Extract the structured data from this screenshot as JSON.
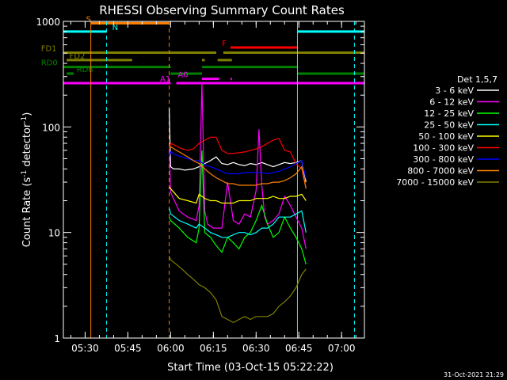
{
  "chart_data": {
    "type": "line",
    "title": "RHESSI Observing Summary Count Rates",
    "xlabel": "Start Time (03-Oct-15 05:22:22)",
    "ylabel_main": "Count Rate (s",
    "ylabel_sup": "-1",
    "ylabel_mid": " detector",
    "ylabel_end": ")",
    "y_scale": "log",
    "ylim": [
      1,
      1000
    ],
    "xlim_minutes": [
      -7.63,
      98.0
    ],
    "x_ticks": [
      {
        "m": 0,
        "label": "05:30"
      },
      {
        "m": 15,
        "label": "05:45"
      },
      {
        "m": 30,
        "label": "06:00"
      },
      {
        "m": 45,
        "label": "06:15"
      },
      {
        "m": 60,
        "label": "06:30"
      },
      {
        "m": 75,
        "label": "06:45"
      },
      {
        "m": 90,
        "label": "07:00"
      }
    ],
    "y_ticks": [
      {
        "v": 1,
        "label": "1"
      },
      {
        "v": 10,
        "label": "10"
      },
      {
        "v": 100,
        "label": "100"
      },
      {
        "v": 1000,
        "label": "1000"
      }
    ],
    "legend_title": "Det 1,5,7",
    "legend_position": "right",
    "series": [
      {
        "name": "3 - 6 keV",
        "color": "#ffffff",
        "x": [
          29.5,
          30,
          31,
          33,
          35,
          38,
          40,
          42,
          44,
          46,
          48,
          50,
          52,
          54,
          56,
          58,
          60,
          62,
          64,
          66,
          68,
          70,
          72,
          74,
          76,
          77.5
        ],
        "y": [
          150,
          42,
          40,
          40,
          39,
          40,
          42,
          45,
          48,
          52,
          45,
          44,
          46,
          44,
          43,
          45,
          44,
          46,
          44,
          42,
          44,
          46,
          45,
          46,
          48,
          30
        ]
      },
      {
        "name": "6 - 12 keV",
        "color": "#ff00ff",
        "x": [
          29.5,
          30,
          33,
          36,
          39,
          40,
          41,
          42,
          43,
          45,
          48,
          50,
          52,
          54,
          56,
          58,
          60,
          61,
          62,
          63,
          64,
          66,
          68,
          70,
          72,
          74,
          76,
          77.5
        ],
        "y": [
          62,
          24,
          16,
          14,
          13,
          18,
          260,
          16,
          12,
          11,
          11,
          30,
          13,
          12,
          15,
          14,
          25,
          95,
          28,
          14,
          12,
          13,
          15,
          22,
          18,
          14,
          11,
          7
        ]
      },
      {
        "name": "12 - 25 keV",
        "color": "#00ff00",
        "x": [
          29.5,
          30,
          33,
          36,
          39,
          40,
          41,
          42,
          44,
          46,
          48,
          50,
          52,
          54,
          56,
          58,
          60,
          62,
          64,
          66,
          68,
          70,
          72,
          74,
          76,
          77.5
        ],
        "y": [
          14,
          13,
          11,
          9,
          8,
          11,
          60,
          10,
          9,
          7.5,
          6.5,
          9,
          8,
          7,
          9,
          10,
          13,
          18,
          12,
          9,
          10,
          14,
          11,
          9,
          7,
          5
        ]
      },
      {
        "name": "25 - 50 keV",
        "color": "#00ffff",
        "x": [
          29.5,
          30,
          33,
          36,
          39,
          40,
          42,
          44,
          46,
          48,
          50,
          52,
          54,
          56,
          58,
          60,
          62,
          64,
          66,
          68,
          70,
          72,
          74,
          76,
          77.5
        ],
        "y": [
          17,
          15,
          13,
          12,
          11,
          12,
          11,
          10,
          9.5,
          9,
          9,
          9.5,
          10,
          10,
          9.5,
          10,
          11,
          11,
          12,
          14,
          14,
          14,
          15,
          16,
          10
        ]
      },
      {
        "name": "50 - 100 keV",
        "color": "#ffff00",
        "x": [
          29.5,
          30,
          33,
          36,
          39,
          40,
          42,
          44,
          46,
          48,
          50,
          52,
          54,
          56,
          58,
          60,
          62,
          64,
          66,
          68,
          70,
          72,
          74,
          76,
          77.5
        ],
        "y": [
          27,
          26,
          21,
          20,
          19,
          23,
          21,
          20,
          20,
          19,
          19,
          19,
          20,
          20,
          20,
          21,
          21,
          21,
          22,
          21,
          21,
          22,
          22,
          23,
          20
        ]
      },
      {
        "name": "100 - 300 keV",
        "color": "#ff0000",
        "x": [
          29.5,
          30,
          32,
          34,
          36,
          38,
          40,
          42,
          44,
          46,
          48,
          50,
          52,
          54,
          56,
          58,
          60,
          62,
          64,
          66,
          68,
          70,
          72,
          74,
          76,
          77.5
        ],
        "y": [
          60,
          70,
          66,
          62,
          60,
          62,
          70,
          75,
          80,
          80,
          60,
          56,
          56,
          57,
          58,
          60,
          62,
          65,
          70,
          75,
          78,
          60,
          58,
          45,
          40,
          26
        ]
      },
      {
        "name": "300 - 800 keV",
        "color": "#0000ff",
        "x": [
          29.5,
          30,
          32,
          34,
          36,
          38,
          40,
          42,
          44,
          46,
          48,
          50,
          52,
          54,
          56,
          58,
          60,
          62,
          64,
          66,
          68,
          70,
          72,
          74,
          76,
          77.5
        ],
        "y": [
          52,
          58,
          54,
          52,
          50,
          48,
          48,
          44,
          42,
          40,
          38,
          36,
          36,
          36,
          37,
          37,
          37,
          37,
          36,
          37,
          38,
          40,
          42,
          45,
          48,
          32
        ]
      },
      {
        "name": "800 - 7000 keV",
        "color": "#ff8000",
        "x": [
          29.5,
          30,
          32,
          34,
          36,
          38,
          40,
          42,
          44,
          46,
          48,
          50,
          52,
          54,
          56,
          58,
          60,
          62,
          64,
          66,
          68,
          70,
          72,
          74,
          76,
          77.5
        ],
        "y": [
          63,
          65,
          60,
          56,
          52,
          48,
          45,
          40,
          36,
          33,
          31,
          29,
          29,
          28,
          28,
          28,
          28,
          29,
          29,
          30,
          30,
          31,
          33,
          36,
          42,
          26
        ]
      },
      {
        "name": "7000 - 15000 keV",
        "color": "#808000",
        "x": [
          29.5,
          30,
          32,
          34,
          36,
          38,
          40,
          42,
          44,
          46,
          48,
          50,
          52,
          54,
          56,
          58,
          60,
          62,
          64,
          66,
          68,
          70,
          72,
          74,
          76,
          77.5
        ],
        "y": [
          6,
          5.5,
          5,
          4.5,
          4,
          3.6,
          3.2,
          3,
          2.7,
          2.3,
          1.6,
          1.5,
          1.4,
          1.5,
          1.6,
          1.5,
          1.6,
          1.6,
          1.6,
          1.7,
          2,
          2.2,
          2.5,
          3,
          4,
          4.5
        ]
      }
    ],
    "flag_bars": [
      {
        "label": "S",
        "color": "#ff8000",
        "y": 960,
        "segments": [
          [
            2.0,
            29.5
          ]
        ],
        "label_x": 0.3
      },
      {
        "label": "N",
        "color": "#00ffff",
        "y": 800,
        "segments": [
          [
            -7.63,
            7.5
          ],
          [
            74.5,
            98
          ]
        ],
        "label_x": 9.5
      },
      {
        "label": "F",
        "color": "#ff0000",
        "y": 565,
        "segments": [
          [
            51.0,
            74.5
          ]
        ],
        "label_x": 48.0
      },
      {
        "label": "FD1",
        "color": "#808000",
        "y": 505,
        "segments": [
          [
            -7.63,
            46.0
          ],
          [
            48.5,
            98
          ]
        ],
        "label_x": -15.5
      },
      {
        "label": "FD2",
        "color": "#808000",
        "y": 430,
        "segments": [
          [
            -6.5,
            16.5
          ],
          [
            41.0,
            42.0
          ],
          [
            46.5,
            51.5
          ]
        ],
        "label_x": -5.5
      },
      {
        "label": "RD0",
        "color": "#008000",
        "y": 370,
        "segments": [
          [
            -7.63,
            30.0
          ],
          [
            41.0,
            74.5
          ]
        ],
        "label_x": -15.5
      },
      {
        "label": "RD6",
        "color": "#008000",
        "y": 320,
        "segments": [
          [
            -6.5,
            -4.0
          ],
          [
            30.0,
            41.0
          ],
          [
            74.5,
            98
          ]
        ],
        "label_x": -3.0
      },
      {
        "label": "A1",
        "color": "#ff00ff",
        "y": 260,
        "segments": [
          [
            -7.63,
            30.0
          ],
          [
            32.0,
            98
          ]
        ],
        "label_x": 26.3
      },
      {
        "label": "A0",
        "color": "#ff00ff",
        "y": 285,
        "segments": [
          [
            41.0,
            47.0
          ],
          [
            51.0,
            51.5
          ]
        ],
        "label_x": 32.5
      }
    ],
    "vlines": [
      {
        "m": -7.63,
        "color": "#00ffff",
        "dash": false
      },
      {
        "m": 2.0,
        "color": "#ff8000",
        "dash": false
      },
      {
        "m": 7.5,
        "color": "#00ffff",
        "dash": true
      },
      {
        "m": 29.5,
        "color": "#ff8000",
        "dash": true
      },
      {
        "m": 74.5,
        "color": "#00ffff",
        "dash": false
      },
      {
        "m": 94.5,
        "color": "#00ffff",
        "dash": true
      }
    ],
    "footer_timestamp": "31-Oct-2021 21:29"
  }
}
